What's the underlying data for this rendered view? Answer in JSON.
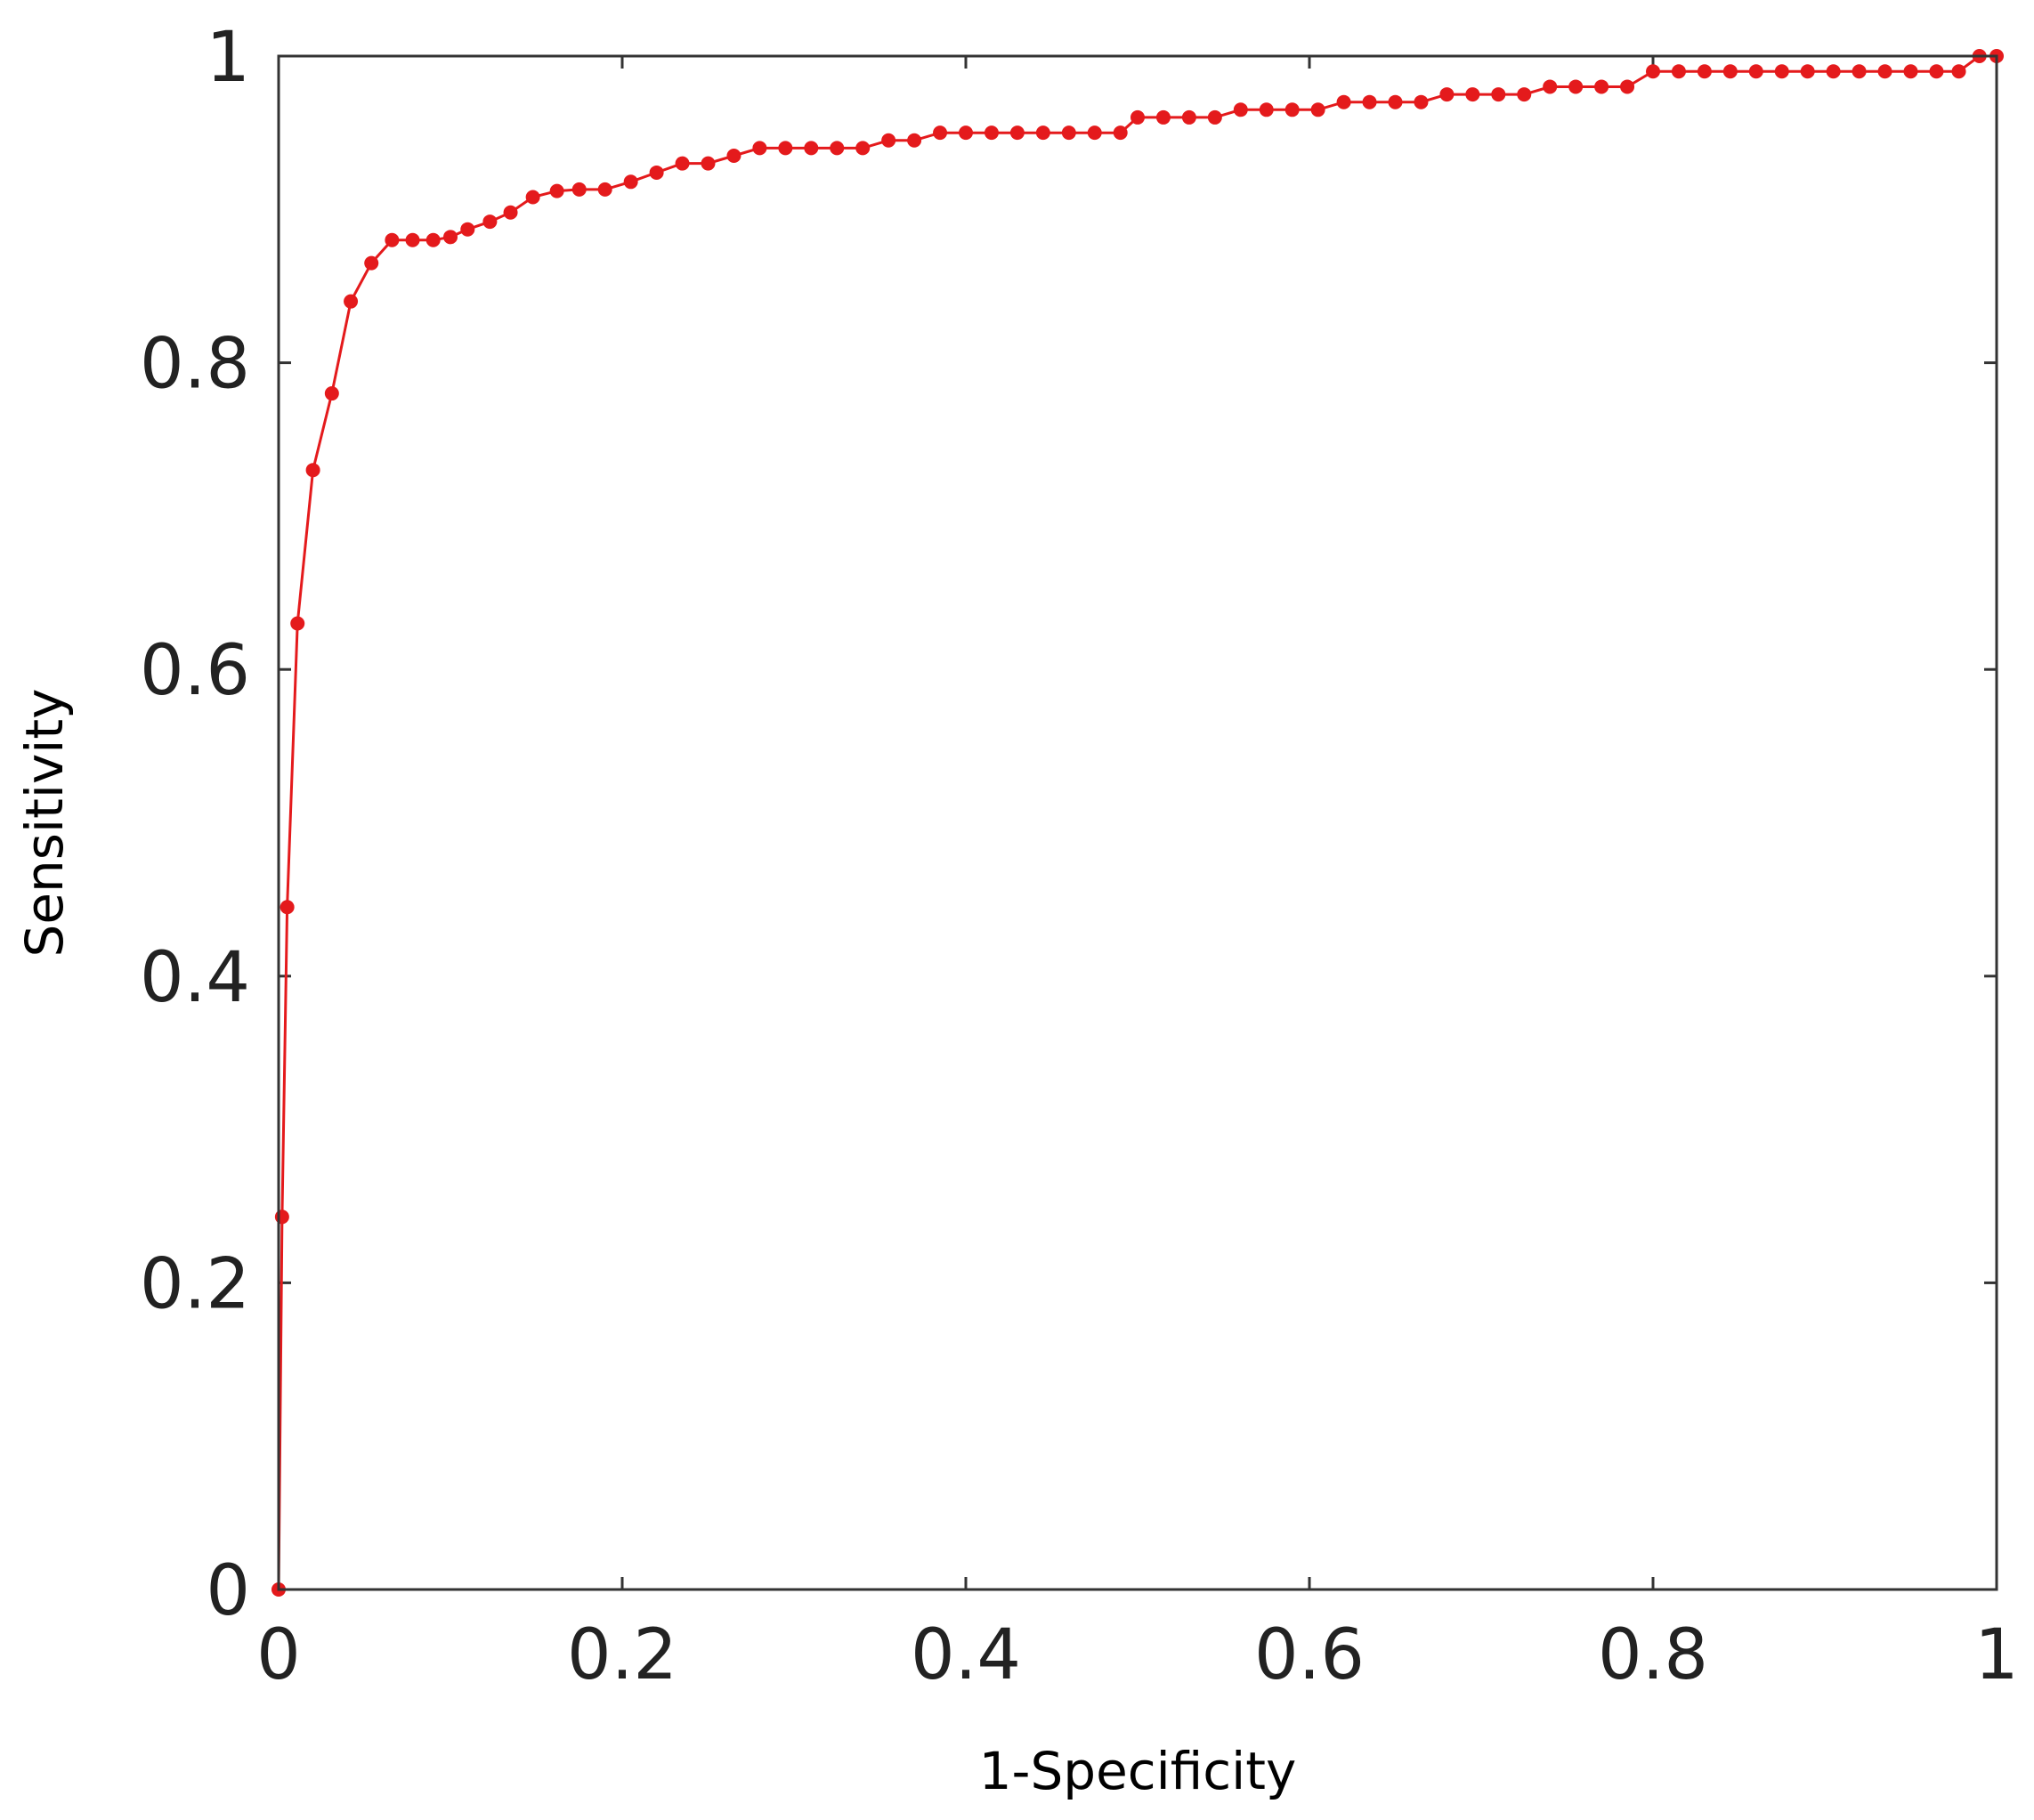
{
  "chart_data": {
    "type": "line",
    "title": "",
    "xlabel": "1-Specificity",
    "ylabel": "Sensitivity",
    "xlim": [
      0,
      1
    ],
    "ylim": [
      0,
      1
    ],
    "xticks": [
      0,
      0.2,
      0.4,
      0.6,
      0.8,
      1
    ],
    "yticks": [
      0,
      0.2,
      0.4,
      0.6,
      0.8,
      1
    ],
    "xtick_labels": [
      "0",
      "0.2",
      "0.4",
      "0.6",
      "0.8",
      "1"
    ],
    "ytick_labels": [
      "0",
      "0.2",
      "0.4",
      "0.6",
      "0.8",
      "1"
    ],
    "grid": false,
    "legend": "none",
    "color": "#e41a1c",
    "series": [
      {
        "x": [
          0,
          0.002,
          0.005,
          0.011,
          0.02,
          0.031,
          0.042,
          0.054,
          0.066,
          0.078,
          0.09,
          0.1,
          0.11,
          0.123,
          0.135,
          0.148,
          0.162,
          0.175,
          0.19,
          0.205,
          0.22,
          0.235,
          0.25,
          0.265,
          0.28,
          0.295,
          0.31,
          0.325,
          0.34,
          0.355,
          0.37,
          0.385,
          0.4,
          0.415,
          0.43,
          0.445,
          0.46,
          0.475,
          0.49,
          0.5,
          0.515,
          0.53,
          0.545,
          0.56,
          0.575,
          0.59,
          0.605,
          0.62,
          0.635,
          0.65,
          0.665,
          0.68,
          0.695,
          0.71,
          0.725,
          0.74,
          0.755,
          0.77,
          0.785,
          0.8,
          0.815,
          0.83,
          0.845,
          0.86,
          0.875,
          0.89,
          0.905,
          0.92,
          0.935,
          0.95,
          0.965,
          0.978,
          0.99,
          1.0
        ],
        "y": [
          0,
          0.243,
          0.445,
          0.63,
          0.73,
          0.78,
          0.84,
          0.865,
          0.88,
          0.88,
          0.88,
          0.882,
          0.887,
          0.892,
          0.898,
          0.908,
          0.912,
          0.913,
          0.913,
          0.918,
          0.924,
          0.93,
          0.93,
          0.935,
          0.94,
          0.94,
          0.94,
          0.94,
          0.94,
          0.945,
          0.945,
          0.95,
          0.95,
          0.95,
          0.95,
          0.95,
          0.95,
          0.95,
          0.95,
          0.96,
          0.96,
          0.96,
          0.96,
          0.965,
          0.965,
          0.965,
          0.965,
          0.97,
          0.97,
          0.97,
          0.97,
          0.975,
          0.975,
          0.975,
          0.975,
          0.98,
          0.98,
          0.98,
          0.98,
          0.99,
          0.99,
          0.99,
          0.99,
          0.99,
          0.99,
          0.99,
          0.99,
          0.99,
          0.99,
          0.99,
          0.99,
          0.99,
          1.0,
          1.0
        ]
      }
    ]
  }
}
